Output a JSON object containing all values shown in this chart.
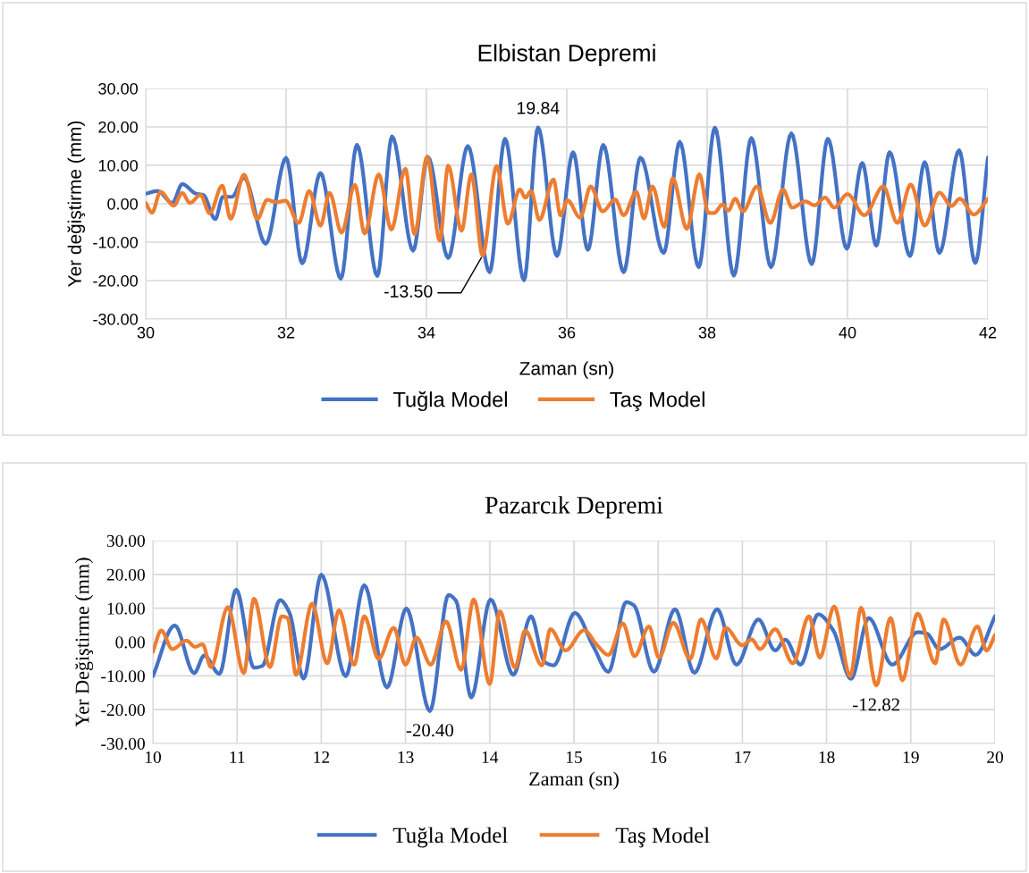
{
  "chart_data": [
    {
      "type": "line",
      "title": "Elbistan Depremi",
      "xlabel": "Zaman (sn)",
      "ylabel": "Yer değiştirme (mm)",
      "xlim": [
        30,
        42
      ],
      "xticks": [
        30,
        32,
        34,
        36,
        38,
        40,
        42
      ],
      "ylim": [
        -30,
        30
      ],
      "yticks": [
        {
          "value": -30,
          "label": "-30.00"
        },
        {
          "value": -20,
          "label": "-20.00"
        },
        {
          "value": -10,
          "label": "-10.00"
        },
        {
          "value": 0,
          "label": "0.00"
        },
        {
          "value": 10,
          "label": "10.00"
        },
        {
          "value": 20,
          "label": "20.00"
        },
        {
          "value": 30,
          "label": "30.00"
        }
      ],
      "grid": true,
      "legend": "bottom",
      "marker": "none",
      "line_style": "solid",
      "annotations": [
        {
          "text": "19.84",
          "x": 35.59,
          "y": 19.84
        },
        {
          "text": "-13.50",
          "x": 34.8,
          "y": -13.5
        }
      ],
      "series": [
        {
          "name": "Tuğla Model",
          "color": "#4472c4",
          "x": [
            30,
            30.17,
            30.38,
            30.52,
            30.72,
            30.82,
            30.99,
            31.1,
            31.23,
            31.4,
            31.71,
            32.0,
            32.23,
            32.49,
            32.78,
            33.01,
            33.3,
            33.51,
            33.81,
            34.02,
            34.31,
            34.59,
            34.9,
            35.12,
            35.39,
            35.59,
            35.86,
            36.09,
            36.3,
            36.52,
            36.81,
            37.05,
            37.38,
            37.61,
            37.88,
            38.11,
            38.38,
            38.63,
            38.91,
            39.2,
            39.49,
            39.72,
            39.99,
            40.21,
            40.41,
            40.6,
            40.89,
            41.1,
            41.31,
            41.59,
            41.82,
            42.0
          ],
          "values": [
            2.6,
            3.3,
            0.2,
            5.1,
            2.6,
            2.3,
            -4.0,
            1.8,
            1.8,
            6.8,
            -10.4,
            11.9,
            -15.5,
            8.0,
            -19.5,
            15.3,
            -18.8,
            17.5,
            -12.2,
            12.2,
            -14.1,
            15.0,
            -17.8,
            16.9,
            -19.9,
            19.84,
            -13.6,
            13.4,
            -12.0,
            15.3,
            -17.8,
            12.0,
            -12.8,
            16.1,
            -16.5,
            19.8,
            -18.7,
            17.1,
            -16.5,
            18.3,
            -15.7,
            16.9,
            -11.7,
            10.6,
            -10.9,
            13.4,
            -13.6,
            10.8,
            -12.8,
            13.9,
            -15.4,
            12.0
          ]
        },
        {
          "name": "Taş Model",
          "color": "#ed7d31",
          "x": [
            30,
            30.09,
            30.21,
            30.4,
            30.52,
            30.63,
            30.78,
            30.91,
            31.09,
            31.21,
            31.4,
            31.59,
            31.73,
            31.86,
            31.99,
            32.18,
            32.33,
            32.49,
            32.62,
            32.79,
            32.98,
            33.12,
            33.32,
            33.5,
            33.7,
            33.83,
            34.01,
            34.19,
            34.31,
            34.5,
            34.64,
            34.8,
            35.0,
            35.16,
            35.33,
            35.41,
            35.49,
            35.61,
            35.81,
            35.91,
            36.01,
            36.19,
            36.34,
            36.51,
            36.69,
            36.81,
            36.99,
            37.1,
            37.22,
            37.39,
            37.51,
            37.71,
            37.89,
            38.02,
            38.1,
            38.22,
            38.3,
            38.4,
            38.51,
            38.71,
            38.9,
            39.08,
            39.21,
            39.4,
            39.53,
            39.68,
            39.81,
            40.0,
            40.24,
            40.51,
            40.71,
            40.9,
            41.1,
            41.31,
            41.48,
            41.6,
            41.8,
            42.0
          ],
          "values": [
            0.2,
            -2.3,
            3.1,
            -0.5,
            2.8,
            0.2,
            2.3,
            -2.5,
            4.7,
            -3.9,
            7.6,
            -4.0,
            1.0,
            0.4,
            0.8,
            -5.0,
            3.3,
            -5.7,
            2.8,
            -7.5,
            4.9,
            -7.7,
            7.6,
            -6.7,
            9.1,
            -7.9,
            12.2,
            -9.6,
            9.9,
            -7.0,
            7.6,
            -13.5,
            9.8,
            -5.2,
            3.7,
            1.6,
            3.3,
            -4.2,
            6.3,
            -3.0,
            0.9,
            -3.6,
            4.5,
            -2.0,
            1.1,
            -3.0,
            3.1,
            -3.8,
            4.5,
            -6.0,
            6.6,
            -6.5,
            7.6,
            -2.4,
            -2.4,
            -0.2,
            -1.8,
            1.3,
            -2.0,
            4.5,
            -5.0,
            3.7,
            -1.0,
            0.6,
            -0.4,
            1.6,
            -1.0,
            2.5,
            -3.0,
            4.5,
            -5.0,
            5.0,
            -5.7,
            2.9,
            -0.6,
            1.3,
            -2.8,
            1.3
          ]
        }
      ]
    },
    {
      "type": "line",
      "title": "Pazarcık Depremi",
      "xlabel": "Zaman (sn)",
      "ylabel": "Yer Değiştirme (mm)",
      "xlim": [
        10,
        20
      ],
      "xticks": [
        10,
        11,
        12,
        13,
        14,
        15,
        16,
        17,
        18,
        19,
        20
      ],
      "ylim": [
        -30,
        30
      ],
      "yticks": [
        {
          "value": -30,
          "label": "-30.00"
        },
        {
          "value": -20,
          "label": "-20.00"
        },
        {
          "value": -10,
          "label": "-10.00"
        },
        {
          "value": 0,
          "label": "0.00"
        },
        {
          "value": 10,
          "label": "10.00"
        },
        {
          "value": 20,
          "label": "20.00"
        },
        {
          "value": 30,
          "label": "30.00"
        }
      ],
      "grid": true,
      "legend": "bottom",
      "marker": "none",
      "line_style": "solid",
      "annotations": [
        {
          "text": "-20.40",
          "x": 13.29,
          "y": -20.4
        },
        {
          "text": "-12.82",
          "x": 18.59,
          "y": -12.82
        }
      ],
      "series": [
        {
          "name": "Tuğla Model",
          "color": "#4472c4",
          "x": [
            10,
            10.26,
            10.49,
            10.61,
            10.79,
            10.99,
            11.2,
            11.3,
            11.51,
            11.62,
            11.79,
            12.0,
            12.29,
            12.51,
            12.78,
            13.01,
            13.29,
            13.51,
            13.6,
            13.78,
            14.01,
            14.28,
            14.49,
            14.65,
            14.76,
            15.01,
            15.23,
            15.41,
            15.62,
            15.71,
            15.95,
            16.2,
            16.43,
            16.7,
            16.93,
            17.19,
            17.39,
            17.51,
            17.69,
            17.9,
            18.08,
            18.29,
            18.5,
            18.78,
            19.08,
            19.19,
            19.34,
            19.58,
            19.77,
            20.0
          ],
          "values": [
            -10.1,
            4.9,
            -9.2,
            -4.0,
            -9.4,
            15.5,
            -7.6,
            -7.1,
            12.4,
            8.8,
            -10.8,
            19.9,
            -10.1,
            16.8,
            -13.4,
            9.9,
            -20.4,
            13.9,
            12.2,
            -16.4,
            12.6,
            -9.7,
            7.6,
            -5.9,
            -6.9,
            8.6,
            -1.3,
            -8.8,
            11.8,
            10.9,
            -8.8,
            9.7,
            -9.1,
            9.7,
            -6.7,
            6.7,
            -2.5,
            0.7,
            -6.7,
            8.2,
            3.4,
            -10.9,
            7.1,
            -6.7,
            2.9,
            2.5,
            -2.1,
            1.3,
            -3.8,
            7.6
          ]
        },
        {
          "name": "Taş Model",
          "color": "#ed7d31",
          "x": [
            10,
            10.1,
            10.23,
            10.4,
            10.5,
            10.59,
            10.69,
            10.89,
            11.08,
            11.2,
            11.39,
            11.53,
            11.6,
            11.7,
            11.89,
            12.07,
            12.21,
            12.39,
            12.51,
            12.68,
            12.86,
            13.0,
            13.13,
            13.3,
            13.48,
            13.66,
            13.81,
            14.0,
            14.12,
            14.3,
            14.42,
            14.62,
            14.72,
            14.9,
            15.12,
            15.27,
            15.41,
            15.58,
            15.72,
            15.89,
            16.01,
            16.18,
            16.38,
            16.51,
            16.69,
            16.8,
            17.0,
            17.11,
            17.21,
            17.39,
            17.6,
            17.79,
            17.92,
            18.09,
            18.28,
            18.41,
            18.59,
            18.76,
            18.9,
            19.08,
            19.29,
            19.39,
            19.59,
            19.79,
            19.9,
            20.0
          ],
          "values": [
            -2.9,
            3.4,
            -2.1,
            0.4,
            -1.4,
            -0.7,
            -7.4,
            10.3,
            -9.2,
            12.8,
            -7.4,
            7.6,
            7.1,
            -9.7,
            11.3,
            -6.3,
            9.4,
            -6.7,
            7.6,
            -5.0,
            4.2,
            -6.7,
            1.3,
            -6.7,
            6.1,
            -8.2,
            12.6,
            -12.4,
            9.1,
            -7.6,
            3.4,
            -6.9,
            3.8,
            -2.5,
            3.5,
            -0.8,
            -3.8,
            5.5,
            -4.2,
            4.6,
            -4.6,
            5.7,
            -5.0,
            6.7,
            -4.9,
            4.2,
            -1.0,
            0.8,
            -2.1,
            3.8,
            -6.3,
            7.6,
            -4.6,
            10.5,
            -10.1,
            10.1,
            -12.82,
            7.1,
            -11.3,
            8.4,
            -6.3,
            6.7,
            -6.7,
            4.6,
            -2.5,
            2.1
          ]
        }
      ]
    }
  ]
}
